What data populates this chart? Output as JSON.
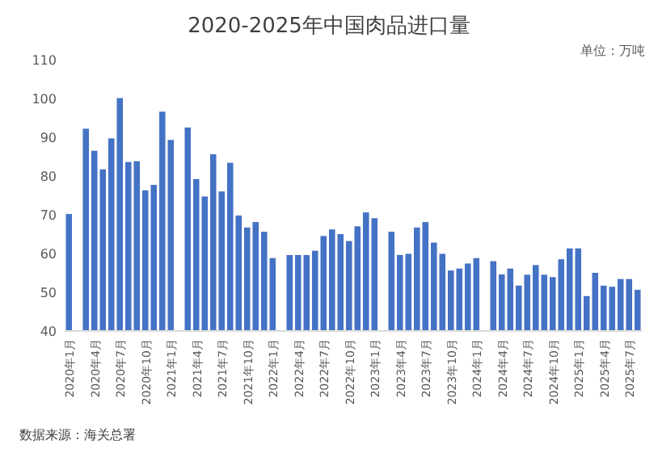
{
  "chart_data": {
    "type": "bar",
    "title": "2020-2025年中国肉品进口量",
    "annotations": [
      "单位：万吨",
      "数据来源：海关总署"
    ],
    "categories": [
      "2020年1月",
      null,
      null,
      "2020年4月",
      null,
      null,
      "2020年7月",
      null,
      null,
      "2020年10月",
      null,
      null,
      "2021年1月",
      null,
      null,
      "2021年4月",
      null,
      null,
      "2021年7月",
      null,
      null,
      "2021年10月",
      null,
      null,
      "2022年1月",
      null,
      null,
      "2022年4月",
      null,
      null,
      "2022年7月",
      null,
      null,
      "2022年10月",
      null,
      null,
      "2023年1月",
      null,
      null,
      "2023年4月",
      null,
      null,
      "2023年7月",
      null,
      null,
      "2023年10月",
      null,
      null,
      "2024年1月",
      null,
      null,
      "2024年4月",
      null,
      null,
      "2024年7月",
      null,
      null,
      "2024年10月",
      null,
      null,
      "2025年1月",
      null,
      null,
      "2025年4月",
      null,
      null,
      "2025年7月",
      null
    ],
    "values": [
      70.2,
      null,
      92.2,
      86.5,
      81.7,
      89.7,
      100.1,
      83.6,
      83.8,
      76.3,
      77.7,
      96.6,
      89.3,
      null,
      92.5,
      79.2,
      74.7,
      85.6,
      76.0,
      83.4,
      69.8,
      66.7,
      68.1,
      65.6,
      58.8,
      null,
      59.6,
      59.6,
      59.6,
      60.7,
      64.5,
      66.2,
      65.0,
      63.2,
      67.0,
      70.6,
      69.1,
      null,
      65.6,
      59.6,
      59.9,
      66.7,
      68.1,
      62.8,
      59.9,
      55.6,
      56.1,
      57.4,
      58.8,
      null,
      58.0,
      54.6,
      56.1,
      51.7,
      54.5,
      57.0,
      54.5,
      53.9,
      58.5,
      61.3,
      61.3,
      49.0,
      55.0,
      51.7,
      51.4,
      53.4,
      53.4,
      50.6
    ],
    "color": "#4472c4",
    "ylim": [
      40,
      110
    ],
    "yticks": [
      40,
      50,
      60,
      70,
      80,
      90,
      100,
      110
    ]
  }
}
